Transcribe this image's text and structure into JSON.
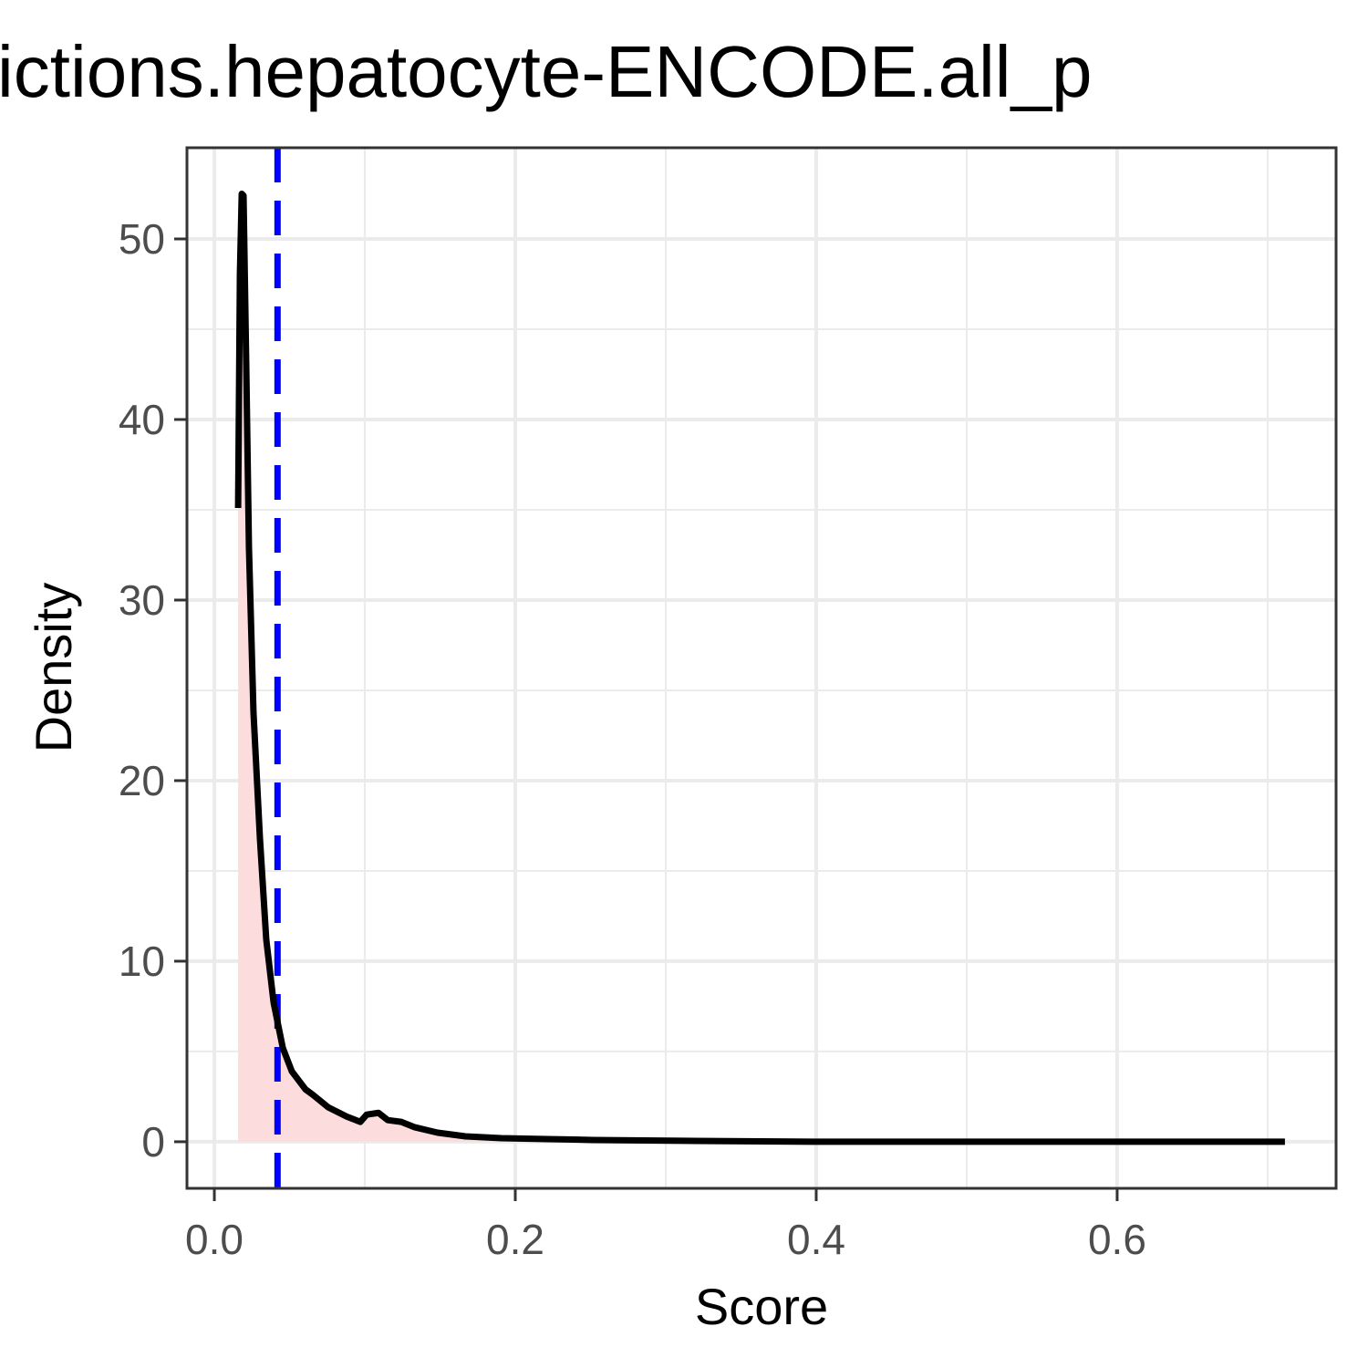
{
  "chart_data": {
    "type": "density",
    "title": "ictions.hepatocyte-ENCODE.all_p",
    "x_label": "Score",
    "y_label": "Density",
    "x": [
      0.0158,
      0.017,
      0.0182,
      0.0194,
      0.0212,
      0.023,
      0.026,
      0.0303,
      0.0345,
      0.0394,
      0.0455,
      0.0515,
      0.0606,
      0.0655,
      0.0758,
      0.0879,
      0.097,
      0.1012,
      0.1091,
      0.1152,
      0.1242,
      0.1333,
      0.1485,
      0.1667,
      0.1909,
      0.2212,
      0.2515,
      0.3121,
      0.403,
      0.7115
    ],
    "values": [
      35.1,
      48.1,
      52.5,
      52.4,
      43,
      32.9,
      23.8,
      16.8,
      11.2,
      7.7,
      5.2,
      3.9,
      2.9,
      2.6,
      1.9,
      1.4,
      1.1,
      1.5,
      1.6,
      1.2,
      1.1,
      0.8,
      0.5,
      0.3,
      0.2,
      0.15,
      0.1,
      0.05,
      0,
      0
    ],
    "color": "#000000",
    "fill": "#fcdcdc",
    "vline": 0.042,
    "vline_color": "#0000ff",
    "xlim": [
      -0.0182,
      0.7455
    ],
    "ylim": [
      -2.58,
      55.05
    ],
    "xticks": [
      {
        "value": 0,
        "label": "0.0"
      },
      0.2,
      0.4,
      0.6
    ],
    "yticks": [
      0,
      10,
      20,
      30,
      40,
      50
    ],
    "xminor": [
      0.1,
      0.3,
      0.5,
      0.7
    ],
    "yminor": [
      5,
      15,
      25,
      35,
      45
    ],
    "grid": true
  }
}
